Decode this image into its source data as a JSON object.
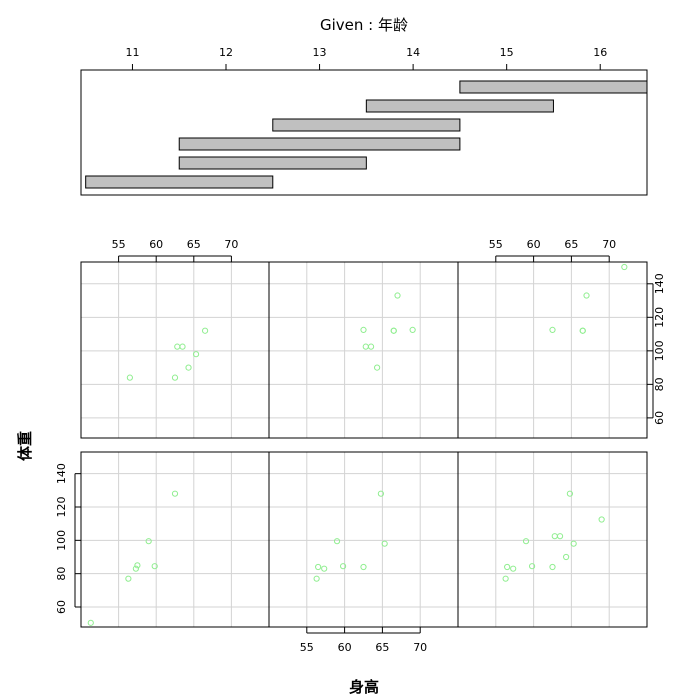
{
  "given_panel": {
    "title": "Given : 年龄",
    "axis_ticks": [
      11,
      12,
      13,
      14,
      15,
      16
    ],
    "range": [
      10.45,
      16.5
    ],
    "intervals": [
      [
        10.5,
        12.5
      ],
      [
        11.5,
        13.5
      ],
      [
        11.5,
        14.5
      ],
      [
        12.5,
        14.5
      ],
      [
        13.5,
        15.5
      ],
      [
        14.5,
        16.5
      ]
    ]
  },
  "chart_data": {
    "type": "scatter",
    "xlabel": "身高",
    "ylabel": "体重",
    "xlim": [
      50,
      75
    ],
    "ylim": [
      48,
      153
    ],
    "x_ticks": [
      55,
      60,
      65,
      70
    ],
    "y_ticks": [
      60,
      80,
      100,
      120,
      140
    ],
    "point_color": "#90ee90",
    "grid": true,
    "layout": "2 rows x 3 columns, given intervals ordered left-to-right then bottom-to-top",
    "panels": [
      {
        "interval": [
          10.5,
          12.5
        ],
        "x": [
          51.3,
          56.3,
          57.3,
          57.5,
          59.0,
          59.8,
          62.5
        ],
        "y": [
          50.5,
          77.0,
          83.0,
          85.0,
          99.5,
          84.5,
          128.0
        ]
      },
      {
        "interval": [
          11.5,
          13.5
        ],
        "x": [
          56.3,
          56.5,
          57.3,
          59.0,
          59.8,
          62.5,
          64.8,
          65.3
        ],
        "y": [
          77.0,
          84.0,
          83.0,
          99.5,
          84.5,
          84.0,
          128.0,
          98.0
        ]
      },
      {
        "interval": [
          11.5,
          14.5
        ],
        "x": [
          56.3,
          56.5,
          57.3,
          59.0,
          59.8,
          62.5,
          62.8,
          63.5,
          64.3,
          64.8,
          65.3,
          69.0
        ],
        "y": [
          77.0,
          84.0,
          83.0,
          99.5,
          84.5,
          84.0,
          102.5,
          102.5,
          90.0,
          128.0,
          98.0,
          112.5
        ]
      },
      {
        "interval": [
          12.5,
          14.5
        ],
        "x": [
          56.5,
          62.5,
          62.8,
          63.5,
          64.3,
          65.3,
          66.5
        ],
        "y": [
          84.0,
          84.0,
          102.5,
          102.5,
          90.0,
          98.0,
          112.0
        ]
      },
      {
        "interval": [
          13.5,
          15.5
        ],
        "x": [
          62.5,
          62.8,
          63.5,
          64.3,
          66.5,
          66.5,
          67.0,
          69.0
        ],
        "y": [
          112.5,
          102.5,
          102.5,
          90.0,
          112.0,
          112.0,
          133.0,
          112.5
        ]
      },
      {
        "interval": [
          14.5,
          16.5
        ],
        "x": [
          62.5,
          66.5,
          66.5,
          67.0,
          72.0
        ],
        "y": [
          112.5,
          112.0,
          112.0,
          133.0,
          150.0
        ]
      }
    ]
  }
}
